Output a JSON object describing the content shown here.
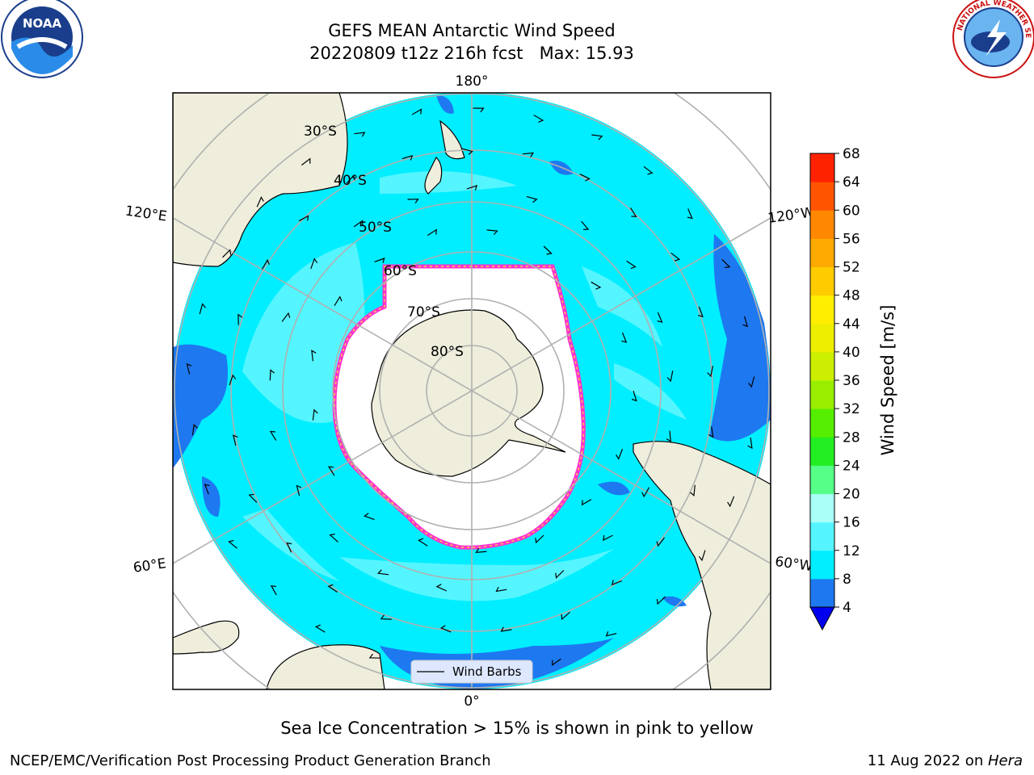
{
  "title": {
    "line1": "GEFS MEAN Antarctic Wind Speed",
    "line2": "20220809 t12z 216h fcst   Max: 15.93"
  },
  "logos": {
    "left": "noaa-logo",
    "right": "nws-logo",
    "left_text": "NOAA",
    "right_text": "NATIONAL WEATHER SERVICE"
  },
  "map": {
    "projection": "south-polar-stereographic",
    "longitude_labels": [
      "180°",
      "120°E",
      "120°W",
      "60°E",
      "60°W",
      "0°"
    ],
    "latitude_labels": [
      "30°S",
      "40°S",
      "50°S",
      "60°S",
      "70°S",
      "80°S"
    ],
    "legend_label": "Wind Barbs",
    "colors": {
      "ocean_4_8": "#1e78f0",
      "ocean_8_12": "#00eeff",
      "ocean_12_16": "#55f5ff",
      "land": "#efeedc",
      "ice_edge": "#ff33cc",
      "ice_inner": "#ffd24d"
    }
  },
  "colorbar": {
    "label": "Wind Speed [m/s]",
    "ticks": [
      "4",
      "8",
      "12",
      "16",
      "20",
      "24",
      "28",
      "32",
      "36",
      "40",
      "44",
      "48",
      "52",
      "56",
      "60",
      "64",
      "68"
    ],
    "colors": [
      "#1e78f0",
      "#00eeff",
      "#55f5ff",
      "#aafff8",
      "#55ff88",
      "#22ee22",
      "#55ee00",
      "#99ee00",
      "#ccee00",
      "#eeee00",
      "#ffee00",
      "#ffcc00",
      "#ffaa00",
      "#ff8800",
      "#ff5500",
      "#ff2200"
    ],
    "extend_color": "#0000ee"
  },
  "caption": "Sea Ice Concentration > 15% is shown in pink to yellow",
  "footer": {
    "left": "NCEP/EMC/Verification Post Processing Product Generation Branch",
    "right_prefix": "11 Aug 2022 on ",
    "right_italic": "Hera"
  }
}
